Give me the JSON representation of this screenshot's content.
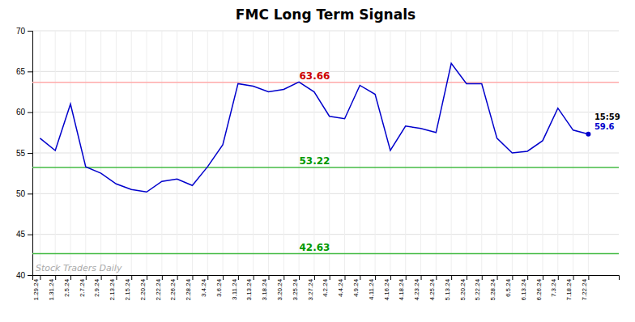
{
  "chart_data": {
    "type": "line",
    "title": "FMC Long Term Signals",
    "categories": [
      "1.29.24",
      "1.31.24",
      "2.5.24",
      "2.7.24",
      "2.9.24",
      "2.13.24",
      "2.15.24",
      "2.20.24",
      "2.22.24",
      "2.26.24",
      "2.28.24",
      "3.4.24",
      "3.6.24",
      "3.11.24",
      "3.13.24",
      "3.18.24",
      "3.20.24",
      "3.25.24",
      "3.27.24",
      "4.2.24",
      "4.4.24",
      "4.9.24",
      "4.11.24",
      "4.16.24",
      "4.18.24",
      "4.23.24",
      "4.25.24",
      "5.13.24",
      "5.20.24",
      "5.22.24",
      "5.28.24",
      "6.5.24",
      "6.13.24",
      "6.26.24",
      "7.3.24",
      "7.18.24",
      "7.22.24"
    ],
    "values": [
      56.8,
      55.3,
      61.0,
      53.3,
      52.5,
      51.2,
      50.5,
      50.2,
      51.5,
      51.8,
      51.0,
      53.3,
      56.0,
      63.5,
      63.2,
      62.5,
      62.8,
      63.7,
      62.5,
      59.5,
      59.2,
      63.3,
      62.2,
      55.3,
      58.3,
      58.0,
      57.5,
      66.0,
      63.5,
      63.5,
      56.8,
      55.0,
      55.2,
      56.5,
      60.5,
      57.8,
      57.3
    ],
    "color": "#0000cc",
    "ylim": [
      40,
      70
    ],
    "yticks": [
      40,
      45,
      50,
      55,
      60,
      65,
      70
    ],
    "grid": true,
    "reference_lines": [
      {
        "value": 63.66,
        "label": "63.66",
        "color": "#ffaaaa",
        "label_color": "#cc0000"
      },
      {
        "value": 53.22,
        "label": "53.22",
        "color": "#44bb44",
        "label_color": "#009900"
      },
      {
        "value": 42.63,
        "label": "42.63",
        "color": "#44bb44",
        "label_color": "#009900"
      }
    ],
    "annotations": [
      {
        "text": "15:59",
        "color": "#000000"
      },
      {
        "text": "59.6",
        "color": "#0000cc"
      }
    ],
    "watermark": {
      "text": "Stock Traders Daily",
      "color": "#aaaaaa"
    }
  }
}
